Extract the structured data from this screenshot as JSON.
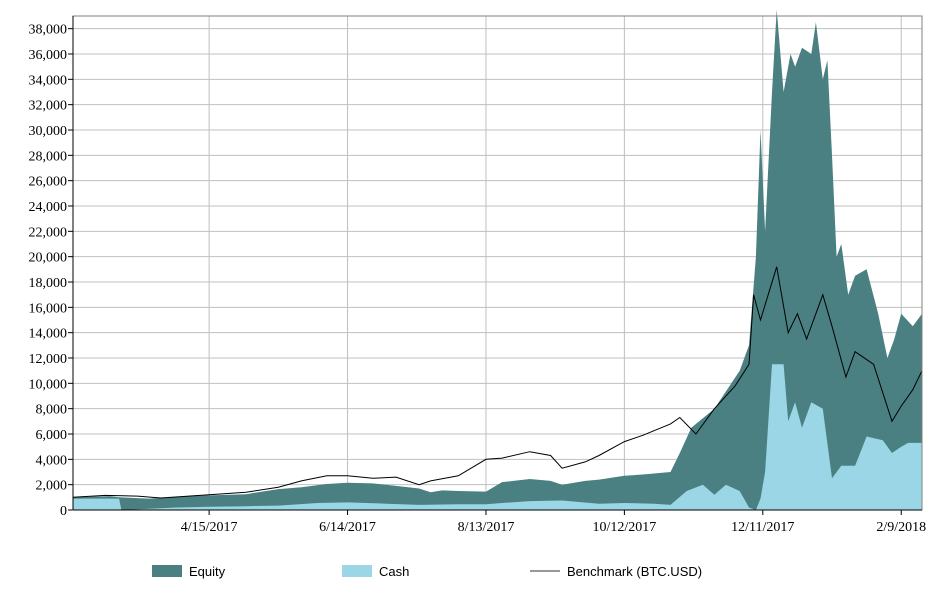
{
  "colors": {
    "equity": "#4a8082",
    "cash": "#9ad6e6",
    "benchmark": "#000000",
    "grid": "#c0c0c0",
    "axis": "#000000"
  },
  "chart_data": {
    "type": "area",
    "title": "",
    "xlabel": "",
    "ylabel": "",
    "ylim": [
      0,
      39000
    ],
    "x_range": [
      "2017-02-15",
      "2018-02-18"
    ],
    "y_ticks": [
      "0",
      "2,000",
      "4,000",
      "6,000",
      "8,000",
      "10,000",
      "12,000",
      "14,000",
      "16,000",
      "18,000",
      "20,000",
      "22,000",
      "24,000",
      "26,000",
      "28,000",
      "30,000",
      "32,000",
      "34,000",
      "36,000",
      "38,000"
    ],
    "y_tick_values": [
      0,
      2000,
      4000,
      6000,
      8000,
      10000,
      12000,
      14000,
      16000,
      18000,
      20000,
      22000,
      24000,
      26000,
      28000,
      30000,
      32000,
      34000,
      36000,
      38000
    ],
    "x_ticks": [
      {
        "date": "2017-04-15",
        "label": "4/15/2017"
      },
      {
        "date": "2017-06-14",
        "label": "6/14/2017"
      },
      {
        "date": "2017-08-13",
        "label": "8/13/2017"
      },
      {
        "date": "2017-10-12",
        "label": "10/12/2017"
      },
      {
        "date": "2017-12-11",
        "label": "12/11/2017"
      },
      {
        "date": "2018-02-09",
        "label": "2/9/2018"
      }
    ],
    "grid": true,
    "legend_position": "bottom",
    "series": [
      {
        "name": "Equity",
        "type": "area",
        "color": "#4a8082",
        "points": [
          [
            "2017-02-15",
            1000
          ],
          [
            "2017-03-03",
            1100
          ],
          [
            "2017-03-07",
            1000
          ],
          [
            "2017-03-20",
            900
          ],
          [
            "2017-04-01",
            1050
          ],
          [
            "2017-04-15",
            1150
          ],
          [
            "2017-05-01",
            1250
          ],
          [
            "2017-05-15",
            1650
          ],
          [
            "2017-05-25",
            1800
          ],
          [
            "2017-06-05",
            2050
          ],
          [
            "2017-06-14",
            2150
          ],
          [
            "2017-06-25",
            2100
          ],
          [
            "2017-07-05",
            1900
          ],
          [
            "2017-07-15",
            1700
          ],
          [
            "2017-07-20",
            1400
          ],
          [
            "2017-07-25",
            1550
          ],
          [
            "2017-08-01",
            1500
          ],
          [
            "2017-08-13",
            1450
          ],
          [
            "2017-08-20",
            2200
          ],
          [
            "2017-09-01",
            2450
          ],
          [
            "2017-09-10",
            2300
          ],
          [
            "2017-09-15",
            2000
          ],
          [
            "2017-09-25",
            2300
          ],
          [
            "2017-10-01",
            2400
          ],
          [
            "2017-10-12",
            2700
          ],
          [
            "2017-10-20",
            2800
          ],
          [
            "2017-11-01",
            3000
          ],
          [
            "2017-11-05",
            4500
          ],
          [
            "2017-11-10",
            6500
          ],
          [
            "2017-11-20",
            8000
          ],
          [
            "2017-12-01",
            11000
          ],
          [
            "2017-12-05",
            13000
          ],
          [
            "2017-12-08",
            20000
          ],
          [
            "2017-12-10",
            30000
          ],
          [
            "2017-12-12",
            22000
          ],
          [
            "2017-12-15",
            33000
          ],
          [
            "2017-12-17",
            39500
          ],
          [
            "2017-12-20",
            33000
          ],
          [
            "2017-12-23",
            36000
          ],
          [
            "2017-12-25",
            35000
          ],
          [
            "2017-12-28",
            36500
          ],
          [
            "2018-01-01",
            36000
          ],
          [
            "2018-01-03",
            38500
          ],
          [
            "2018-01-06",
            34000
          ],
          [
            "2018-01-08",
            35500
          ],
          [
            "2018-01-10",
            28000
          ],
          [
            "2018-01-12",
            20000
          ],
          [
            "2018-01-14",
            21000
          ],
          [
            "2018-01-17",
            17000
          ],
          [
            "2018-01-20",
            18500
          ],
          [
            "2018-01-25",
            19000
          ],
          [
            "2018-01-30",
            15500
          ],
          [
            "2018-02-03",
            12000
          ],
          [
            "2018-02-06",
            13500
          ],
          [
            "2018-02-09",
            15500
          ],
          [
            "2018-02-14",
            14500
          ],
          [
            "2018-02-18",
            15500
          ]
        ]
      },
      {
        "name": "Cash",
        "type": "area",
        "color": "#9ad6e6",
        "points": [
          [
            "2017-02-15",
            900
          ],
          [
            "2017-03-07",
            900
          ],
          [
            "2017-03-08",
            0
          ],
          [
            "2017-04-01",
            200
          ],
          [
            "2017-04-15",
            250
          ],
          [
            "2017-05-01",
            300
          ],
          [
            "2017-05-15",
            350
          ],
          [
            "2017-06-01",
            550
          ],
          [
            "2017-06-14",
            600
          ],
          [
            "2017-07-01",
            500
          ],
          [
            "2017-07-15",
            400
          ],
          [
            "2017-08-01",
            450
          ],
          [
            "2017-08-13",
            450
          ],
          [
            "2017-08-20",
            550
          ],
          [
            "2017-09-01",
            700
          ],
          [
            "2017-09-15",
            750
          ],
          [
            "2017-10-01",
            500
          ],
          [
            "2017-10-12",
            550
          ],
          [
            "2017-10-25",
            500
          ],
          [
            "2017-11-01",
            400
          ],
          [
            "2017-11-08",
            1500
          ],
          [
            "2017-11-15",
            2000
          ],
          [
            "2017-11-20",
            1200
          ],
          [
            "2017-11-25",
            2000
          ],
          [
            "2017-12-01",
            1500
          ],
          [
            "2017-12-05",
            200
          ],
          [
            "2017-12-08",
            0
          ],
          [
            "2017-12-10",
            900
          ],
          [
            "2017-12-12",
            3000
          ],
          [
            "2017-12-15",
            11500
          ],
          [
            "2017-12-20",
            11500
          ],
          [
            "2017-12-22",
            7000
          ],
          [
            "2017-12-25",
            8500
          ],
          [
            "2017-12-28",
            6500
          ],
          [
            "2018-01-01",
            8500
          ],
          [
            "2018-01-06",
            8000
          ],
          [
            "2018-01-10",
            2500
          ],
          [
            "2018-01-14",
            3500
          ],
          [
            "2018-01-20",
            3500
          ],
          [
            "2018-01-25",
            5800
          ],
          [
            "2018-02-01",
            5500
          ],
          [
            "2018-02-05",
            4500
          ],
          [
            "2018-02-09",
            5000
          ],
          [
            "2018-02-12",
            5300
          ],
          [
            "2018-02-18",
            5300
          ]
        ]
      },
      {
        "name": "Benchmark (BTC.USD)",
        "type": "line",
        "color": "#000000",
        "points": [
          [
            "2017-02-15",
            1000
          ],
          [
            "2017-03-01",
            1150
          ],
          [
            "2017-03-15",
            1100
          ],
          [
            "2017-03-25",
            950
          ],
          [
            "2017-04-15",
            1200
          ],
          [
            "2017-05-01",
            1400
          ],
          [
            "2017-05-15",
            1800
          ],
          [
            "2017-05-25",
            2300
          ],
          [
            "2017-06-05",
            2700
          ],
          [
            "2017-06-14",
            2700
          ],
          [
            "2017-06-25",
            2500
          ],
          [
            "2017-07-05",
            2600
          ],
          [
            "2017-07-15",
            2000
          ],
          [
            "2017-07-20",
            2300
          ],
          [
            "2017-08-01",
            2700
          ],
          [
            "2017-08-13",
            4000
          ],
          [
            "2017-08-20",
            4100
          ],
          [
            "2017-09-01",
            4600
          ],
          [
            "2017-09-10",
            4300
          ],
          [
            "2017-09-15",
            3300
          ],
          [
            "2017-09-25",
            3800
          ],
          [
            "2017-10-01",
            4300
          ],
          [
            "2017-10-12",
            5400
          ],
          [
            "2017-10-20",
            5900
          ],
          [
            "2017-11-01",
            6800
          ],
          [
            "2017-11-05",
            7300
          ],
          [
            "2017-11-12",
            6000
          ],
          [
            "2017-11-20",
            8000
          ],
          [
            "2017-11-29",
            9800
          ],
          [
            "2017-12-05",
            11500
          ],
          [
            "2017-12-07",
            17000
          ],
          [
            "2017-12-10",
            15000
          ],
          [
            "2017-12-17",
            19200
          ],
          [
            "2017-12-22",
            14000
          ],
          [
            "2017-12-26",
            15500
          ],
          [
            "2017-12-30",
            13500
          ],
          [
            "2018-01-06",
            17000
          ],
          [
            "2018-01-10",
            14500
          ],
          [
            "2018-01-16",
            10500
          ],
          [
            "2018-01-20",
            12500
          ],
          [
            "2018-01-28",
            11500
          ],
          [
            "2018-02-05",
            7000
          ],
          [
            "2018-02-09",
            8200
          ],
          [
            "2018-02-14",
            9500
          ],
          [
            "2018-02-18",
            11000
          ]
        ]
      }
    ]
  }
}
